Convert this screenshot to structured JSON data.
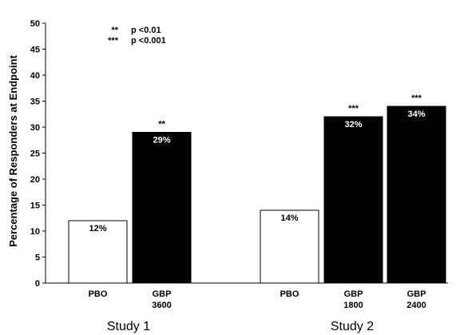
{
  "chart_data": {
    "type": "bar",
    "ylabel": "Percentage of Responders at Endpoint",
    "ylim": [
      0,
      50
    ],
    "yticks": [
      0,
      5,
      10,
      15,
      20,
      25,
      30,
      35,
      40,
      45,
      50
    ],
    "grid": false,
    "legend": {
      "placement": "top-left",
      "entries": [
        {
          "marker": "**",
          "text": "p <0.01"
        },
        {
          "marker": "***",
          "text": "p <0.001"
        }
      ]
    },
    "groups": [
      {
        "name": "Study 1",
        "bars": [
          {
            "category": [
              "PBO"
            ],
            "value": 12,
            "label": "12%",
            "sig": "",
            "color": "#ffffff"
          },
          {
            "category": [
              "GBP",
              "3600"
            ],
            "value": 29,
            "label": "29%",
            "sig": "**",
            "color": "#000000"
          }
        ]
      },
      {
        "name": "Study 2",
        "bars": [
          {
            "category": [
              "PBO"
            ],
            "value": 14,
            "label": "14%",
            "sig": "",
            "color": "#ffffff"
          },
          {
            "category": [
              "GBP",
              "1800"
            ],
            "value": 32,
            "label": "32%",
            "sig": "***",
            "color": "#000000"
          },
          {
            "category": [
              "GBP",
              "2400"
            ],
            "value": 34,
            "label": "34%",
            "sig": "***",
            "color": "#000000"
          }
        ]
      }
    ]
  }
}
